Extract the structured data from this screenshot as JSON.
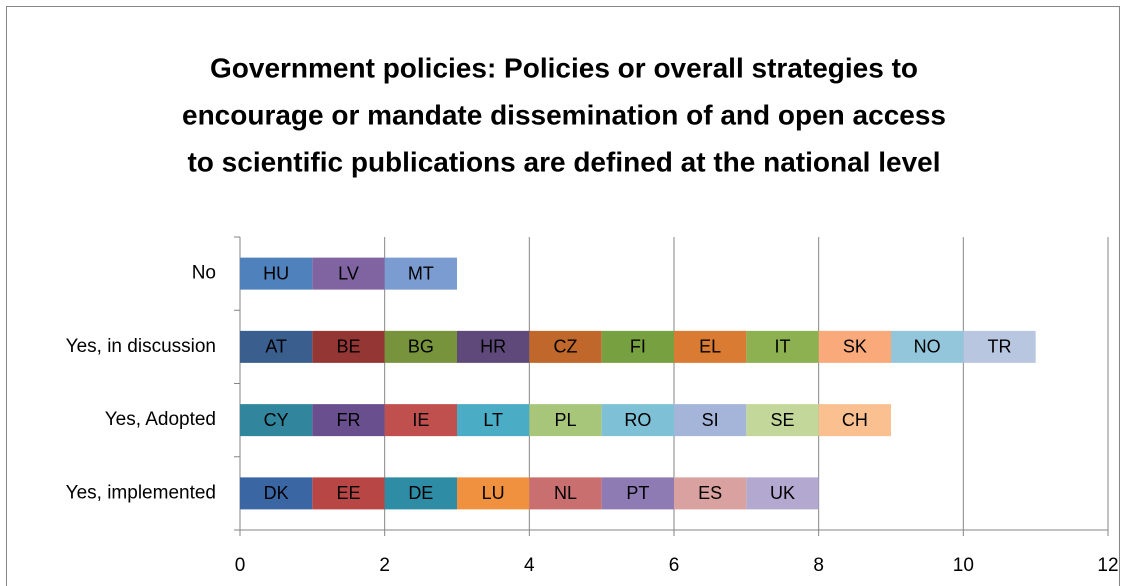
{
  "chart_data": {
    "type": "stacked-bar-horizontal",
    "title": [
      "Government policies:  Policies or overall strategies to",
      "encourage or mandate dissemination of and open access",
      "to scientific publications are defined at the national level"
    ],
    "bars": [
      {
        "category": "No",
        "segments": [
          {
            "name": "HU",
            "value": 1,
            "color": "#4f81bd"
          },
          {
            "name": "LV",
            "value": 1,
            "color": "#8064a2"
          },
          {
            "name": "MT",
            "value": 1,
            "color": "#7b9cd1"
          }
        ]
      },
      {
        "category": "Yes, in discussion",
        "segments": [
          {
            "name": "AT",
            "value": 1,
            "color": "#3a5f8f"
          },
          {
            "name": "BE",
            "value": 1,
            "color": "#943634"
          },
          {
            "name": "BG",
            "value": 1,
            "color": "#77933c"
          },
          {
            "name": "HR",
            "value": 1,
            "color": "#5f497a"
          },
          {
            "name": "CZ",
            "value": 1,
            "color": "#c0682b"
          },
          {
            "name": "FI",
            "value": 1,
            "color": "#77a040"
          },
          {
            "name": "EL",
            "value": 1,
            "color": "#d97b33"
          },
          {
            "name": "IT",
            "value": 1,
            "color": "#8db050"
          },
          {
            "name": "SK",
            "value": 1,
            "color": "#f9a97a"
          },
          {
            "name": "NO",
            "value": 1,
            "color": "#93c6db"
          },
          {
            "name": "TR",
            "value": 1,
            "color": "#b9c6e0"
          }
        ]
      },
      {
        "category": "Yes, Adopted",
        "segments": [
          {
            "name": "CY",
            "value": 1,
            "color": "#31859c"
          },
          {
            "name": "FR",
            "value": 1,
            "color": "#6a4f8f"
          },
          {
            "name": "IE",
            "value": 1,
            "color": "#c0504d"
          },
          {
            "name": "LT",
            "value": 1,
            "color": "#4bacc6"
          },
          {
            "name": "PL",
            "value": 1,
            "color": "#a8c67a"
          },
          {
            "name": "RO",
            "value": 1,
            "color": "#7ec0d6"
          },
          {
            "name": "SI",
            "value": 1,
            "color": "#a5b5d9"
          },
          {
            "name": "SE",
            "value": 1,
            "color": "#c4d79b"
          },
          {
            "name": "CH",
            "value": 1,
            "color": "#fac090"
          }
        ]
      },
      {
        "category": "Yes, implemented",
        "segments": [
          {
            "name": "DK",
            "value": 1,
            "color": "#3b66a4"
          },
          {
            "name": "EE",
            "value": 1,
            "color": "#b84644"
          },
          {
            "name": "DE",
            "value": 1,
            "color": "#2f8ca5"
          },
          {
            "name": "LU",
            "value": 1,
            "color": "#f0913f"
          },
          {
            "name": "NL",
            "value": 1,
            "color": "#c96f6f"
          },
          {
            "name": "PT",
            "value": 1,
            "color": "#8f7bb3"
          },
          {
            "name": "ES",
            "value": 1,
            "color": "#d9a1a0"
          },
          {
            "name": "UK",
            "value": 1,
            "color": "#b3a8cf"
          }
        ]
      }
    ],
    "xlim": [
      0,
      12
    ],
    "xticks": [
      0,
      2,
      4,
      6,
      8,
      10,
      12
    ],
    "grid": true
  }
}
